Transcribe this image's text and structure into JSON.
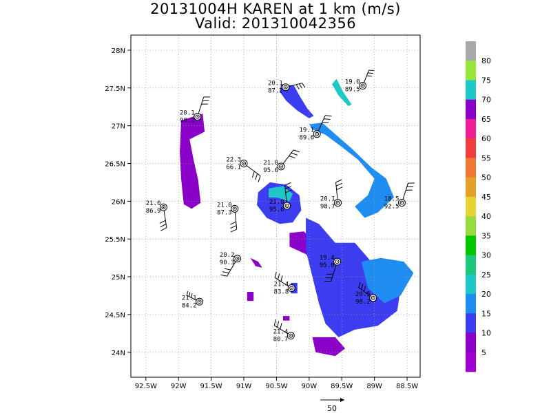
{
  "title": {
    "line1": "20131004H KAREN at 1 km (m/s)",
    "line2": "Valid: 201310042356"
  },
  "chart_data": {
    "type": "scatter",
    "title": "20131004H KAREN at 1 km (m/s)",
    "subtitle": "Valid: 201310042356",
    "xlim": [
      -92.73,
      -88.3
    ],
    "ylim": [
      23.67,
      28.2
    ],
    "grid": true,
    "x_ticks": [
      {
        "v": -92.5,
        "label": "92.5W"
      },
      {
        "v": -92,
        "label": "92W"
      },
      {
        "v": -91.5,
        "label": "91.5W"
      },
      {
        "v": -91,
        "label": "91W"
      },
      {
        "v": -90.5,
        "label": "90.5W"
      },
      {
        "v": -90,
        "label": "90W"
      },
      {
        "v": -89.5,
        "label": "89.5W"
      },
      {
        "v": -89,
        "label": "89W"
      },
      {
        "v": -88.5,
        "label": "88.5W"
      }
    ],
    "y_ticks": [
      {
        "v": 24,
        "label": "24N"
      },
      {
        "v": 24.5,
        "label": "24.5N"
      },
      {
        "v": 25,
        "label": "25N"
      },
      {
        "v": 25.5,
        "label": "25.5N"
      },
      {
        "v": 26,
        "label": "26N"
      },
      {
        "v": 26.5,
        "label": "26.5N"
      },
      {
        "v": 27,
        "label": "27N"
      },
      {
        "v": 27.5,
        "label": "27.5N"
      },
      {
        "v": 28,
        "label": "28N"
      }
    ],
    "wind_regions": [
      {
        "name": "west-band",
        "color": "#8a00c8",
        "pts": [
          [
            -91.96,
            27.07
          ],
          [
            -91.63,
            27.16
          ],
          [
            -91.6,
            26.92
          ],
          [
            -91.83,
            26.82
          ],
          [
            -91.77,
            26.55
          ],
          [
            -91.7,
            26.28
          ],
          [
            -91.66,
            25.98
          ],
          [
            -91.8,
            25.9
          ],
          [
            -91.92,
            25.96
          ],
          [
            -91.96,
            26.3
          ],
          [
            -91.98,
            26.65
          ]
        ]
      },
      {
        "name": "north-band",
        "color": "#3c3cf0",
        "pts": [
          [
            -90.43,
            27.55
          ],
          [
            -90.23,
            27.53
          ],
          [
            -90.15,
            27.4
          ],
          [
            -90.03,
            27.23
          ],
          [
            -89.93,
            27.13
          ],
          [
            -90.0,
            27.1
          ],
          [
            -90.18,
            27.2
          ],
          [
            -90.35,
            27.33
          ],
          [
            -90.45,
            27.45
          ]
        ]
      },
      {
        "name": "northeast-streak",
        "color": "#1ec8c8",
        "pts": [
          [
            -89.58,
            27.62
          ],
          [
            -89.48,
            27.45
          ],
          [
            -89.35,
            27.28
          ],
          [
            -89.4,
            27.26
          ],
          [
            -89.55,
            27.4
          ],
          [
            -89.65,
            27.55
          ]
        ]
      },
      {
        "name": "east-arc",
        "color": "#1e8cf0",
        "pts": [
          [
            -90.0,
            27.02
          ],
          [
            -89.8,
            27.04
          ],
          [
            -89.55,
            26.85
          ],
          [
            -89.35,
            26.7
          ],
          [
            -89.05,
            26.45
          ],
          [
            -88.82,
            26.3
          ],
          [
            -88.7,
            26.05
          ],
          [
            -88.95,
            25.85
          ],
          [
            -89.15,
            25.78
          ],
          [
            -89.3,
            25.93
          ],
          [
            -89.1,
            26.08
          ],
          [
            -89.0,
            26.3
          ],
          [
            -89.25,
            26.55
          ],
          [
            -89.5,
            26.72
          ],
          [
            -89.75,
            26.88
          ],
          [
            -89.95,
            26.95
          ]
        ]
      },
      {
        "name": "core-ring",
        "color": "#3c3cf0",
        "pts": [
          [
            -90.78,
            26.12
          ],
          [
            -90.6,
            26.25
          ],
          [
            -90.35,
            26.22
          ],
          [
            -90.15,
            26.08
          ],
          [
            -90.12,
            25.88
          ],
          [
            -90.25,
            25.72
          ],
          [
            -90.45,
            25.7
          ],
          [
            -90.65,
            25.78
          ],
          [
            -90.8,
            25.95
          ]
        ]
      },
      {
        "name": "core-ring-inner",
        "color": "#1ec8c8",
        "pts": [
          [
            -90.62,
            26.17
          ],
          [
            -90.4,
            26.2
          ],
          [
            -90.25,
            26.1
          ],
          [
            -90.3,
            26.0
          ],
          [
            -90.5,
            26.05
          ],
          [
            -90.62,
            26.05
          ]
        ]
      },
      {
        "name": "south-purple",
        "color": "#8a00c8",
        "pts": [
          [
            -90.3,
            25.58
          ],
          [
            -90.08,
            25.6
          ],
          [
            -89.88,
            25.43
          ],
          [
            -89.6,
            25.38
          ],
          [
            -89.32,
            25.42
          ],
          [
            -89.3,
            25.2
          ],
          [
            -89.55,
            25.05
          ],
          [
            -89.8,
            25.08
          ],
          [
            -90.05,
            25.3
          ],
          [
            -90.3,
            25.4
          ]
        ]
      },
      {
        "name": "south-blue",
        "color": "#3c3cf0",
        "pts": [
          [
            -90.05,
            25.78
          ],
          [
            -89.85,
            25.7
          ],
          [
            -89.6,
            25.45
          ],
          [
            -89.3,
            25.45
          ],
          [
            -89.05,
            25.2
          ],
          [
            -88.82,
            25.05
          ],
          [
            -88.6,
            24.85
          ],
          [
            -88.65,
            24.55
          ],
          [
            -88.95,
            24.35
          ],
          [
            -89.3,
            24.3
          ],
          [
            -89.55,
            24.2
          ],
          [
            -89.75,
            24.38
          ],
          [
            -89.85,
            24.65
          ],
          [
            -89.95,
            25.0
          ],
          [
            -90.05,
            25.35
          ]
        ]
      },
      {
        "name": "south-lightblue",
        "color": "#1e8cf0",
        "pts": [
          [
            -89.2,
            25.2
          ],
          [
            -88.9,
            25.25
          ],
          [
            -88.55,
            25.2
          ],
          [
            -88.4,
            25.05
          ],
          [
            -88.6,
            24.75
          ],
          [
            -88.85,
            24.65
          ],
          [
            -89.1,
            24.85
          ]
        ]
      },
      {
        "name": "far-south-purple",
        "color": "#8a00c8",
        "pts": [
          [
            -89.95,
            24.2
          ],
          [
            -89.6,
            24.2
          ],
          [
            -89.45,
            24.05
          ],
          [
            -89.6,
            23.95
          ],
          [
            -89.9,
            24.0
          ]
        ]
      },
      {
        "name": "small-purple-1",
        "color": "#8a00c8",
        "pts": [
          [
            -90.95,
            24.8
          ],
          [
            -90.85,
            24.8
          ],
          [
            -90.85,
            24.68
          ],
          [
            -90.95,
            24.68
          ]
        ]
      },
      {
        "name": "small-blue-1",
        "color": "#3c3cf0",
        "pts": [
          [
            -90.28,
            24.92
          ],
          [
            -90.18,
            24.92
          ],
          [
            -90.18,
            24.78
          ],
          [
            -90.28,
            24.78
          ]
        ]
      },
      {
        "name": "small-purple-2",
        "color": "#8a00c8",
        "pts": [
          [
            -90.9,
            25.25
          ],
          [
            -90.78,
            25.2
          ],
          [
            -90.72,
            25.12
          ],
          [
            -90.82,
            25.14
          ]
        ]
      },
      {
        "name": "small-purple-3",
        "color": "#8a00c8",
        "pts": [
          [
            -90.4,
            24.48
          ],
          [
            -90.3,
            24.48
          ],
          [
            -90.3,
            24.42
          ],
          [
            -90.4,
            24.42
          ]
        ]
      }
    ],
    "stations": [
      {
        "lon": -90.36,
        "lat": 27.51,
        "t": "20.1",
        "p": "87.2",
        "bx": 0.8,
        "by": -0.2,
        "lx": -4,
        "ly": 0,
        "anchor": "end"
      },
      {
        "lon": -89.18,
        "lat": 27.53,
        "t": "19.0",
        "p": "89.5",
        "bx": 0.3,
        "by": -0.75,
        "lx": -4,
        "ly": 0,
        "anchor": "end"
      },
      {
        "lon": -91.71,
        "lat": 27.12,
        "t": "20.1",
        "p": "98.1",
        "bx": 0.3,
        "by": -0.95,
        "lx": -4,
        "ly": 0,
        "anchor": "end"
      },
      {
        "lon": -89.88,
        "lat": 26.89,
        "t": "19.1",
        "p": "89.6",
        "bx": 0.4,
        "by": -0.9,
        "lx": -4,
        "ly": 0,
        "anchor": "end"
      },
      {
        "lon": -91.0,
        "lat": 26.5,
        "t": "22.3",
        "p": "66.1",
        "bx": 0.8,
        "by": 0.6,
        "lx": -4,
        "ly": 0,
        "anchor": "end"
      },
      {
        "lon": -90.43,
        "lat": 26.46,
        "t": "21.0",
        "p": "95.6",
        "bx": 0.6,
        "by": -0.8,
        "lx": -4,
        "ly": 0,
        "anchor": "end"
      },
      {
        "lon": -92.23,
        "lat": 25.92,
        "t": "21.0",
        "p": "86.9",
        "bx": 0.15,
        "by": 0.99,
        "lx": -4,
        "ly": 0,
        "anchor": "end"
      },
      {
        "lon": -91.14,
        "lat": 25.9,
        "t": "21.0",
        "p": "87.3",
        "bx": 0.1,
        "by": 0.99,
        "lx": -4,
        "ly": 0,
        "anchor": "end"
      },
      {
        "lon": -90.34,
        "lat": 25.94,
        "t": "21.0",
        "p": "95.6",
        "bx": -0.1,
        "by": -0.99,
        "lx": -4,
        "ly": 0,
        "anchor": "end"
      },
      {
        "lon": -89.56,
        "lat": 25.98,
        "t": "20.1",
        "p": "98.7",
        "bx": -0.1,
        "by": -0.99,
        "lx": -4,
        "ly": 0,
        "anchor": "end"
      },
      {
        "lon": -88.58,
        "lat": 25.98,
        "t": "18.5",
        "p": "92.5",
        "bx": 0.3,
        "by": -0.95,
        "lx": -4,
        "ly": 0,
        "anchor": "end"
      },
      {
        "lon": -91.1,
        "lat": 25.24,
        "t": "20.2",
        "p": "90.3",
        "bx": -0.5,
        "by": 0.85,
        "lx": -4,
        "ly": 0,
        "anchor": "end"
      },
      {
        "lon": -89.57,
        "lat": 25.2,
        "t": "19.4",
        "p": "95.0",
        "bx": -0.3,
        "by": 0.95,
        "lx": -4,
        "ly": 0,
        "anchor": "end"
      },
      {
        "lon": -90.27,
        "lat": 24.85,
        "t": "21.4",
        "p": "83.8",
        "bx": -0.8,
        "by": -0.5,
        "lx": -4,
        "ly": 0,
        "anchor": "end"
      },
      {
        "lon": -91.68,
        "lat": 24.67,
        "t": "21.1",
        "p": "84.2",
        "bx": -0.6,
        "by": -0.3,
        "lx": -4,
        "ly": 0,
        "anchor": "end"
      },
      {
        "lon": -89.02,
        "lat": 24.72,
        "t": "20.5",
        "p": "98.2",
        "bx": -0.7,
        "by": -0.5,
        "lx": -4,
        "ly": 0,
        "anchor": "end"
      },
      {
        "lon": -90.28,
        "lat": 24.22,
        "t": "21.4",
        "p": "80.7",
        "bx": -0.8,
        "by": -0.5,
        "lx": -4,
        "ly": 0,
        "anchor": "end"
      }
    ],
    "colorbar": {
      "labels": [
        "80",
        "75",
        "70",
        "65",
        "60",
        "55",
        "50",
        "45",
        "40",
        "35",
        "30",
        "25",
        "20",
        "15",
        "10",
        "5"
      ],
      "colors": [
        "#a8a8a8",
        "#96e63c",
        "#1ec8c8",
        "#8a00c8",
        "#f01e96",
        "#f03c3c",
        "#f07832",
        "#e6a028",
        "#e6d232",
        "#96dc3c",
        "#00c800",
        "#1ec878",
        "#1ec8c8",
        "#1e8cf0",
        "#3c3cf0",
        "#8a00c8",
        "#a000d2"
      ]
    },
    "ref_vector": {
      "label": "50"
    }
  }
}
